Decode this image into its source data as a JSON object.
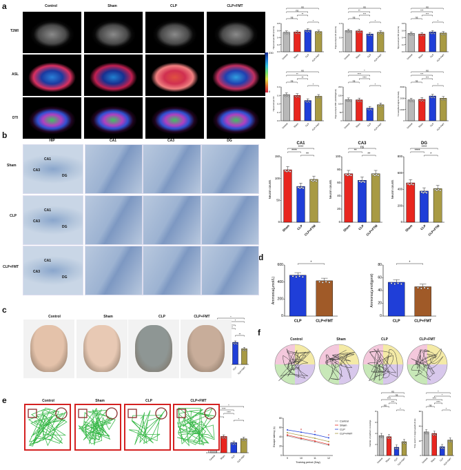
{
  "panels": {
    "a": "a",
    "b": "b",
    "c": "c",
    "d": "d",
    "e": "e",
    "f": "f"
  },
  "groups": [
    "Control",
    "Sham",
    "CLP",
    "CLP+FMT"
  ],
  "a": {
    "rows": [
      "T2WI",
      "ASL",
      "DTI"
    ],
    "colorbar": {
      "max": "230",
      "min": "0"
    }
  },
  "b": {
    "cols": [
      "HIP",
      "CA1",
      "CA3",
      "DG"
    ],
    "rows": [
      "Sham",
      "CLP",
      "CLP+FMT"
    ],
    "region_labels": [
      "CA1",
      "CA3",
      "DG"
    ]
  },
  "c": {
    "cols": [
      "Control",
      "Sham",
      "CLP",
      "CLP+FMT"
    ]
  },
  "e": {
    "cols": [
      "Control",
      "Sham",
      "CLP",
      "CLP+FMT"
    ]
  },
  "f": {
    "cols": [
      "Control",
      "Sham",
      "CLP",
      "CLP+FMT"
    ]
  },
  "chart_data": [
    {
      "id": "a1",
      "type": "bar",
      "categories": [
        "Control",
        "Sham",
        "CLP",
        "CLP+FMT"
      ],
      "values": [
        0.55,
        0.56,
        0.61,
        0.57
      ],
      "ylabel": "Hippocampal MD (mm²/s)",
      "ylim": [
        0,
        0.8
      ],
      "yticks": [
        "0.0",
        "0.2",
        "0.4",
        "0.6",
        "0.8"
      ],
      "sig": [
        {
          "i": 0,
          "j": 3,
          "t": "ns"
        },
        {
          "i": 0,
          "j": 2,
          "t": "ns"
        },
        {
          "i": 1,
          "j": 2,
          "t": "**"
        },
        {
          "i": 0,
          "j": 1,
          "t": "ns"
        },
        {
          "i": 2,
          "j": 3,
          "t": "*"
        }
      ]
    },
    {
      "id": "a2",
      "type": "bar",
      "categories": [
        "Control",
        "Sham",
        "CLP",
        "CLP+FMT"
      ],
      "values": [
        0.75,
        0.74,
        0.63,
        0.69
      ],
      "ylabel": "Hippocampal AD (mm²/s)",
      "ylim": [
        0,
        1.0
      ],
      "yticks": [
        "0.0",
        "0.5",
        "1.0"
      ],
      "sig": [
        {
          "i": 0,
          "j": 3,
          "t": "ns"
        },
        {
          "i": 0,
          "j": 2,
          "t": "**"
        },
        {
          "i": 1,
          "j": 2,
          "t": "***"
        },
        {
          "i": 0,
          "j": 1,
          "t": "ns"
        },
        {
          "i": 2,
          "j": 3,
          "t": "*"
        }
      ]
    },
    {
      "id": "a3",
      "type": "bar",
      "categories": [
        "Control",
        "Sham",
        "CLP",
        "CLP+FMT"
      ],
      "values": [
        0.52,
        0.5,
        0.56,
        0.53
      ],
      "ylabel": "Hippocampal RD (mm²/s)",
      "ylim": [
        0,
        0.8
      ],
      "yticks": [
        "0.0",
        "0.2",
        "0.4",
        "0.6",
        "0.8"
      ],
      "sig": [
        {
          "i": 0,
          "j": 3,
          "t": "ns"
        },
        {
          "i": 0,
          "j": 2,
          "t": "***"
        },
        {
          "i": 1,
          "j": 2,
          "t": "***"
        },
        {
          "i": 0,
          "j": 1,
          "t": "ns"
        },
        {
          "i": 2,
          "j": 3,
          "t": "*"
        }
      ]
    },
    {
      "id": "a4",
      "type": "bar",
      "categories": [
        "Control",
        "Sham",
        "CLP",
        "CLP+FMT"
      ],
      "values": [
        0.31,
        0.3,
        0.24,
        0.29
      ],
      "ylabel": "Hippocampal FA",
      "ylim": [
        0,
        0.4
      ],
      "yticks": [
        "0.0",
        "0.1",
        "0.2",
        "0.3",
        "0.4"
      ],
      "sig": [
        {
          "i": 0,
          "j": 3,
          "t": "ns"
        },
        {
          "i": 0,
          "j": 2,
          "t": "**"
        },
        {
          "i": 1,
          "j": 2,
          "t": "**"
        },
        {
          "i": 0,
          "j": 1,
          "t": "ns"
        },
        {
          "i": 2,
          "j": 3,
          "t": "*"
        }
      ]
    },
    {
      "id": "a5",
      "type": "bar",
      "categories": [
        "Control",
        "Sham",
        "CLP",
        "CLP+FMT"
      ],
      "values": [
        125,
        124,
        75,
        95
      ],
      "ylabel": "Hippocampal CBF (ml/100g/min)",
      "ylim": [
        0,
        200
      ],
      "yticks": [
        "0",
        "50",
        "100",
        "150",
        "200"
      ],
      "sig": [
        {
          "i": 0,
          "j": 3,
          "t": "*"
        },
        {
          "i": 0,
          "j": 2,
          "t": "****"
        },
        {
          "i": 1,
          "j": 2,
          "t": "****"
        },
        {
          "i": 0,
          "j": 1,
          "t": "ns"
        },
        {
          "i": 2,
          "j": 3,
          "t": "*"
        }
      ]
    },
    {
      "id": "a6",
      "type": "bar",
      "categories": [
        "Control",
        "Sham",
        "CLP",
        "CLP+FMT"
      ],
      "values": [
        1850,
        1900,
        2200,
        2000
      ],
      "ylabel": "T2-weighted signal intensity",
      "ylim": [
        0,
        3000
      ],
      "yticks": [
        "0",
        "1000",
        "2000",
        "3000"
      ],
      "sig": [
        {
          "i": 0,
          "j": 3,
          "t": "ns"
        },
        {
          "i": 0,
          "j": 2,
          "t": "***"
        },
        {
          "i": 1,
          "j": 2,
          "t": "***"
        },
        {
          "i": 0,
          "j": 1,
          "t": "ns"
        },
        {
          "i": 2,
          "j": 3,
          "t": "*"
        }
      ]
    },
    {
      "id": "b1",
      "type": "bar",
      "title": "CA1",
      "categories": [
        "Sham",
        "CLP",
        "CLP+FTM"
      ],
      "values": [
        120,
        82,
        98
      ],
      "ylabel": "Neuron counts",
      "ylim": [
        0,
        150
      ],
      "yticks": [
        "0",
        "50",
        "100",
        "150"
      ],
      "sig": [
        {
          "i": 0,
          "j": 2,
          "t": "****"
        },
        {
          "i": 0,
          "j": 1,
          "t": "****"
        },
        {
          "i": 1,
          "j": 2,
          "t": "**"
        }
      ]
    },
    {
      "id": "b2",
      "type": "bar",
      "title": "CA3",
      "categories": [
        "Sham",
        "CLP",
        "CLP+FTM"
      ],
      "values": [
        74,
        64,
        74
      ],
      "ylabel": "Neuron counts",
      "ylim": [
        0,
        100
      ],
      "yticks": [
        "0",
        "20",
        "40",
        "60",
        "80",
        "100"
      ],
      "sig": [
        {
          "i": 0,
          "j": 2,
          "t": "ns"
        },
        {
          "i": 0,
          "j": 1,
          "t": "**"
        },
        {
          "i": 1,
          "j": 2,
          "t": "**"
        }
      ]
    },
    {
      "id": "b3",
      "type": "bar",
      "title": "DG",
      "categories": [
        "Sham",
        "CLP",
        "CLP+FTM"
      ],
      "values": [
        480,
        380,
        410
      ],
      "ylabel": "Neuron counts",
      "ylim": [
        0,
        800
      ],
      "yticks": [
        "0",
        "200",
        "400",
        "600",
        "800"
      ],
      "sig": [
        {
          "i": 0,
          "j": 2,
          "t": "****"
        },
        {
          "i": 0,
          "j": 1,
          "t": "****"
        },
        {
          "i": 1,
          "j": 2,
          "t": "*"
        }
      ]
    },
    {
      "id": "c1",
      "type": "bar",
      "categories": [
        "Control",
        "Sham",
        "CLP",
        "CLP+FMT"
      ],
      "values": [
        2.1,
        2.2,
        4.8,
        3.4
      ],
      "ylabel": "Evans Blue(OD value)",
      "ylim": [
        0,
        6
      ],
      "yticks": [
        "0",
        "2",
        "4",
        "6"
      ],
      "sig": [
        {
          "i": 0,
          "j": 3,
          "t": "*"
        },
        {
          "i": 1,
          "j": 3,
          "t": "*"
        },
        {
          "i": 0,
          "j": 2,
          "t": "***"
        },
        {
          "i": 1,
          "j": 2,
          "t": "****"
        },
        {
          "i": 0,
          "j": 1,
          "t": "ns"
        },
        {
          "i": 2,
          "j": 3,
          "t": "**"
        }
      ]
    },
    {
      "id": "d1",
      "type": "bar",
      "categories": [
        "CLP",
        "CLP+FMT"
      ],
      "values": [
        480,
        415
      ],
      "ylabel": "Ammonia(μmol/L)",
      "ylim": [
        0,
        600
      ],
      "yticks": [
        "0",
        "200",
        "400",
        "600"
      ],
      "sig": [
        {
          "i": 0,
          "j": 1,
          "t": "*"
        }
      ]
    },
    {
      "id": "d2",
      "type": "bar",
      "categories": [
        "CLP",
        "CLP+FMT"
      ],
      "values": [
        53,
        46
      ],
      "ylabel": "Ammonia(μmol/gprot)",
      "ylim": [
        0,
        80
      ],
      "yticks": [
        "0",
        "20",
        "40",
        "60",
        "80"
      ],
      "sig": [
        {
          "i": 0,
          "j": 1,
          "t": "*"
        }
      ]
    },
    {
      "id": "e1",
      "type": "bar",
      "categories": [
        "Control",
        "Sham",
        "CLP",
        "CLP+FMT"
      ],
      "values": [
        4.5,
        4.2,
        2.6,
        3.6
      ],
      "ylabel": "Distance(m)/5min",
      "ylim": [
        0,
        8
      ],
      "yticks": [
        "0",
        "2",
        "4",
        "6",
        "8"
      ],
      "sig": [
        {
          "i": 0,
          "j": 3,
          "t": "*"
        },
        {
          "i": 0,
          "j": 2,
          "t": "****"
        },
        {
          "i": 1,
          "j": 2,
          "t": "****"
        },
        {
          "i": 0,
          "j": 1,
          "t": "ns"
        },
        {
          "i": 2,
          "j": 3,
          "t": "*"
        }
      ]
    },
    {
      "id": "f2",
      "type": "bar",
      "categories": [
        "Control",
        "Sham",
        "CLP",
        "CLP+FMT"
      ],
      "values": [
        3.6,
        3.4,
        1.5,
        2.5
      ],
      "ylabel": "Number of platform crossings",
      "ylim": [
        0,
        8
      ],
      "yticks": [
        "0",
        "2",
        "4",
        "6",
        "8"
      ],
      "sig": [
        {
          "i": 0,
          "j": 3,
          "t": "ns"
        },
        {
          "i": 1,
          "j": 3,
          "t": "ns"
        },
        {
          "i": 0,
          "j": 2,
          "t": "****"
        },
        {
          "i": 1,
          "j": 2,
          "t": "***"
        },
        {
          "i": 0,
          "j": 1,
          "t": "ns"
        },
        {
          "i": 2,
          "j": 3,
          "t": "*"
        }
      ]
    },
    {
      "id": "f3",
      "type": "bar",
      "categories": [
        "Control",
        "Sham",
        "CLP",
        "CLP+FMT"
      ],
      "values": [
        32,
        30,
        12,
        21
      ],
      "ylabel": "Time spent in target quadrant (s)",
      "ylim": [
        0,
        60
      ],
      "yticks": [
        "0",
        "20",
        "40",
        "60"
      ],
      "sig": [
        {
          "i": 0,
          "j": 3,
          "t": "*"
        },
        {
          "i": 1,
          "j": 3,
          "t": "*"
        },
        {
          "i": 0,
          "j": 2,
          "t": "****"
        },
        {
          "i": 1,
          "j": 2,
          "t": "****"
        },
        {
          "i": 0,
          "j": 1,
          "t": "ns"
        },
        {
          "i": 2,
          "j": 3,
          "t": "*"
        }
      ]
    },
    {
      "id": "f1",
      "type": "line",
      "x": [
        9,
        10,
        11,
        12
      ],
      "xticks": [
        "9",
        "10",
        "11",
        "12"
      ],
      "xlabel": "Training period (Day)",
      "ylabel": "Escape latency (s)",
      "ylim": [
        0,
        80
      ],
      "yticks": [
        "0",
        "20",
        "40",
        "60",
        "80"
      ],
      "series": [
        {
          "name": "Control",
          "values": [
            42,
            35,
            29,
            22
          ]
        },
        {
          "name": "Sham",
          "values": [
            44,
            37,
            31,
            24
          ]
        },
        {
          "name": "CLP",
          "values": [
            55,
            50,
            45,
            38
          ]
        },
        {
          "name": "CLP+FMT",
          "values": [
            49,
            43,
            37,
            30
          ]
        }
      ],
      "markers": [
        "#",
        "#",
        "#"
      ]
    }
  ]
}
